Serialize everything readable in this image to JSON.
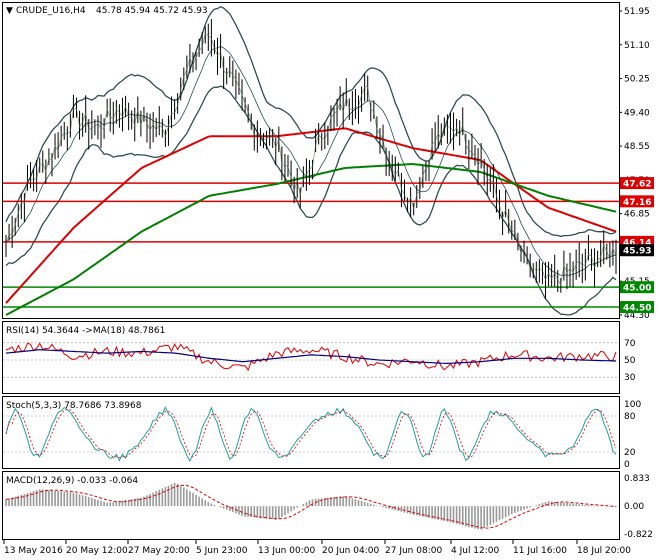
{
  "header": {
    "symbol": "CRUDE_U16,H4",
    "ohlc": "45.78 45.94 45.72 45.93"
  },
  "price_axis": {
    "ticks": [
      "51.95",
      "51.10",
      "50.25",
      "49.40",
      "48.55",
      "47.70",
      "46.85",
      "46.00",
      "45.15",
      "44.30"
    ],
    "current": "45.93"
  },
  "levels": [
    {
      "label": "47.62",
      "value": 47.62,
      "color": "#dd0000"
    },
    {
      "label": "47.16",
      "value": 47.16,
      "color": "#dd0000"
    },
    {
      "label": "46.14",
      "value": 46.14,
      "color": "#dd0000"
    },
    {
      "label": "45.00",
      "value": 45.0,
      "color": "#008800"
    },
    {
      "label": "44.50",
      "value": 44.5,
      "color": "#008800"
    }
  ],
  "time_axis": [
    "13 May 2016",
    "20 May 12:00",
    "27 May 20:00",
    "5 Jun 23:00",
    "13 Jun 00:00",
    "20 Jun 04:00",
    "27 Jun 08:00",
    "4 Jul 12:00",
    "11 Jul 16:00",
    "18 Jul 20:00"
  ],
  "rsi": {
    "label": "RSI(14) 54.3644  ->MA(18) 48.7861",
    "ticks": [
      "70",
      "50",
      "30"
    ]
  },
  "stoch": {
    "label": "Stoch(5,3,3) 78.7686 73.8968",
    "ticks": [
      "100",
      "80",
      "20",
      "0"
    ]
  },
  "macd": {
    "label": "MACD(12,26,9) -0.033 -0.064",
    "ticks": [
      "0.833",
      "0.00",
      "-0.822"
    ]
  },
  "colors": {
    "price": "#000000",
    "ma_green": "#008000",
    "ma_red": "#dd0000",
    "bands": "#2f4f4f",
    "rsi_ma": "#000080",
    "stoch_signal": "#20a0a0",
    "macd_signal": "#dd0000"
  },
  "chart_data": {
    "type": "line",
    "title": "CRUDE_U16,H4",
    "ylim": [
      44.3,
      51.95
    ],
    "x": [
      "13 May 2016",
      "20 May 12:00",
      "27 May 20:00",
      "5 Jun 23:00",
      "13 Jun 00:00",
      "20 Jun 04:00",
      "27 Jun 08:00",
      "4 Jul 12:00",
      "11 Jul 16:00",
      "18 Jul 20:00"
    ],
    "series": [
      {
        "name": "close",
        "values": [
          46.1,
          49.3,
          49.2,
          51.4,
          48.6,
          49.6,
          48.7,
          46.9,
          45.1,
          45.93
        ]
      },
      {
        "name": "ma_red",
        "values": [
          44.6,
          46.5,
          48.0,
          48.8,
          48.8,
          49.0,
          48.5,
          48.2,
          47.0,
          46.4
        ]
      },
      {
        "name": "ma_green",
        "values": [
          44.3,
          45.2,
          46.4,
          47.3,
          47.6,
          48.0,
          48.1,
          47.9,
          47.3,
          46.9
        ]
      }
    ]
  }
}
